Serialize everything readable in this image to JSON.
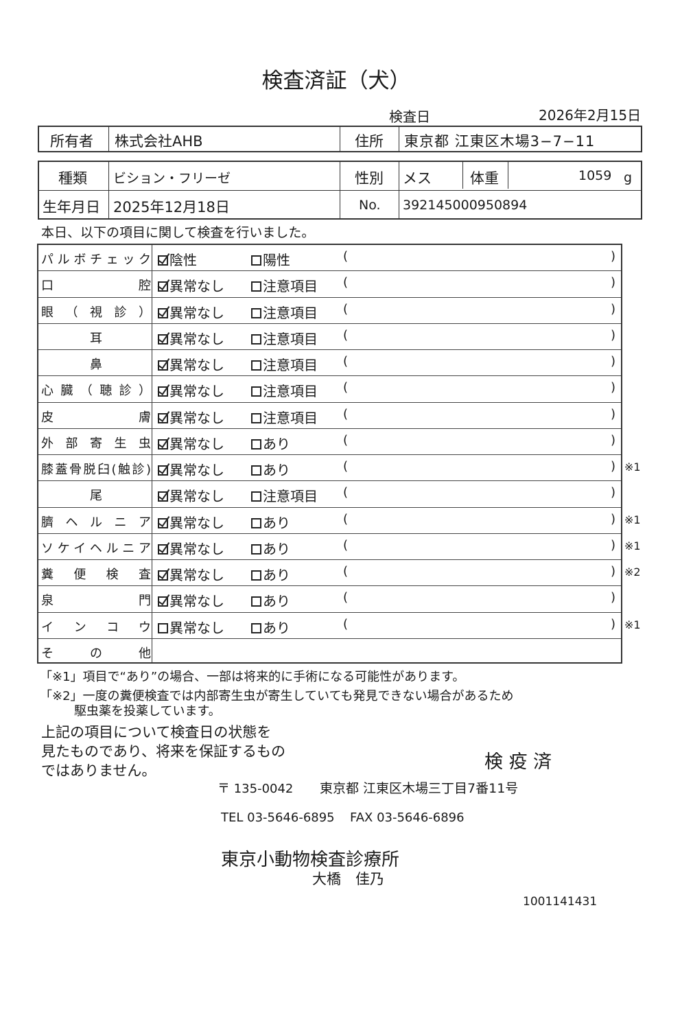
{
  "title": "検査済証（犬）",
  "exam_date_label": "検査日",
  "exam_date": "2026年2月15日",
  "owner": {
    "label": "所有者",
    "value": "株式会社AHB",
    "address_label": "住所",
    "address": "東京都 江東区木場3−7−11"
  },
  "animal": {
    "type_label": "種類",
    "type": "ビション・フリーゼ",
    "sex_label": "性別",
    "sex": "メス",
    "weight_label": "体重",
    "weight": "1059",
    "weight_unit": "g",
    "birth_label": "生年月日",
    "birth": "2025年12月18日",
    "no_label": "No.",
    "no": "392145000950894"
  },
  "intro": "本日、以下の項目に関して検査を行いました。",
  "paren_open": "(",
  "paren_close": ")",
  "items": [
    {
      "label": "パルボチェック",
      "opt1": "陰性",
      "opt1_checked": true,
      "opt2": "陽性",
      "note": ""
    },
    {
      "label": "口腔",
      "opt1": "異常なし",
      "opt1_checked": true,
      "opt2": "注意項目",
      "note": ""
    },
    {
      "label": "眼（視診）",
      "opt1": "異常なし",
      "opt1_checked": true,
      "opt2": "注意項目",
      "note": ""
    },
    {
      "label": "耳",
      "opt1": "異常なし",
      "opt1_checked": true,
      "opt2": "注意項目",
      "note": "",
      "center": true
    },
    {
      "label": "鼻",
      "opt1": "異常なし",
      "opt1_checked": true,
      "opt2": "注意項目",
      "note": "",
      "center": true
    },
    {
      "label": "心臓（聴診）",
      "opt1": "異常なし",
      "opt1_checked": true,
      "opt2": "注意項目",
      "note": ""
    },
    {
      "label": "皮膚",
      "opt1": "異常なし",
      "opt1_checked": true,
      "opt2": "注意項目",
      "note": ""
    },
    {
      "label": "外部寄生虫",
      "opt1": "異常なし",
      "opt1_checked": true,
      "opt2": "あり",
      "note": ""
    },
    {
      "label": "膝蓋骨脱臼(触診)",
      "opt1": "異常なし",
      "opt1_checked": true,
      "opt2": "あり",
      "note": "※1"
    },
    {
      "label": "尾",
      "opt1": "異常なし",
      "opt1_checked": true,
      "opt2": "注意項目",
      "note": "",
      "center": true
    },
    {
      "label": "臍ヘルニア",
      "opt1": "異常なし",
      "opt1_checked": true,
      "opt2": "あり",
      "note": "※1"
    },
    {
      "label": "ソケイヘルニア",
      "opt1": "異常なし",
      "opt1_checked": true,
      "opt2": "あり",
      "note": "※1"
    },
    {
      "label": "糞便検査",
      "opt1": "異常なし",
      "opt1_checked": true,
      "opt2": "あり",
      "note": "※2"
    },
    {
      "label": "泉門",
      "opt1": "異常なし",
      "opt1_checked": true,
      "opt2": "あり",
      "note": ""
    },
    {
      "label": "インコウ",
      "opt1": "異常なし",
      "opt1_checked": false,
      "opt2": "あり",
      "note": "※1"
    },
    {
      "label": "その他"
    }
  ],
  "footnote1": "「※1」項目で“あり”の場合、一部は将来的に手術になる可能性があります。",
  "footnote2a": "「※2」一度の糞便検査では内部寄生虫が寄生していても発見できない場合があるため",
  "footnote2b": "駆虫薬を投薬しています。",
  "disclaimer": [
    "上記の項目について検査日の状態を",
    "見たものであり、将来を保証するもの",
    "ではありません。"
  ],
  "stamp": "検 疫 済",
  "clinic": {
    "postal": "〒 135-0042",
    "address": "東京都 江東区木場三丁目7番11号",
    "tel": "TEL 03-5646-6895",
    "fax": "FAX 03-5646-6896",
    "name": "東京小動物検査診療所",
    "vet": "大橋　佳乃"
  },
  "doc_number": "1001141431"
}
